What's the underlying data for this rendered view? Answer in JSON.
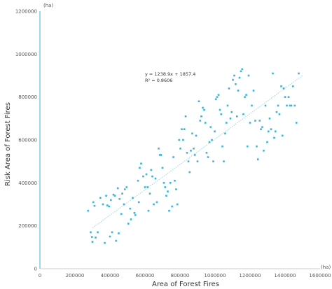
{
  "chart_data": {
    "type": "scatter",
    "title": "",
    "xlabel": "Area of Forest Fires",
    "ylabel": "Risk Area of Forest Fires",
    "x_unit": "(ha)",
    "y_unit": "(ha)",
    "xlim": [
      0,
      1600000
    ],
    "ylim": [
      0,
      1200000
    ],
    "x_ticks": [
      0,
      200000,
      400000,
      600000,
      800000,
      1000000,
      1200000,
      1400000,
      1600000
    ],
    "y_ticks": [
      0,
      200000,
      400000,
      600000,
      800000,
      1000000,
      1200000
    ],
    "x_tick_labels": [
      "0",
      "200000",
      "400000",
      "600000",
      "800000",
      "1000000",
      "1200000",
      "1400000",
      "1600000"
    ],
    "y_tick_labels": [
      "0",
      "200000",
      "400000",
      "600000",
      "800000",
      "1000000",
      "1200000"
    ],
    "grid": false,
    "trendline": {
      "equation": "y = 1238.9x + 1857.4",
      "r_squared": "R² = 0.8606",
      "x_range": [
        300000,
        1500000
      ],
      "y_range": [
        190000,
        900000
      ]
    },
    "colors": {
      "point": "#3ab4d8",
      "trendline": "#9ad6e8",
      "y_axis": "#6fcbe8",
      "x_axis": "#cccccc"
    },
    "points": [
      [
        275000,
        270000
      ],
      [
        290000,
        170000
      ],
      [
        297000,
        148000
      ],
      [
        300000,
        125000
      ],
      [
        305000,
        310000
      ],
      [
        312000,
        293000
      ],
      [
        318000,
        145000
      ],
      [
        330000,
        170000
      ],
      [
        345000,
        330000
      ],
      [
        360000,
        300000
      ],
      [
        370000,
        120000
      ],
      [
        378000,
        340000
      ],
      [
        385000,
        295000
      ],
      [
        395000,
        290000
      ],
      [
        400000,
        150000
      ],
      [
        405000,
        320000
      ],
      [
        412000,
        170000
      ],
      [
        420000,
        345000
      ],
      [
        428000,
        340000
      ],
      [
        435000,
        130000
      ],
      [
        445000,
        375000
      ],
      [
        450000,
        165000
      ],
      [
        455000,
        325000
      ],
      [
        465000,
        255000
      ],
      [
        470000,
        350000
      ],
      [
        480000,
        300000
      ],
      [
        485000,
        370000
      ],
      [
        495000,
        380000
      ],
      [
        505000,
        210000
      ],
      [
        515000,
        280000
      ],
      [
        520000,
        230000
      ],
      [
        530000,
        330000
      ],
      [
        540000,
        260000
      ],
      [
        545000,
        250000
      ],
      [
        560000,
        410000
      ],
      [
        565000,
        310000
      ],
      [
        570000,
        470000
      ],
      [
        578000,
        490000
      ],
      [
        590000,
        430000
      ],
      [
        600000,
        380000
      ],
      [
        608000,
        440000
      ],
      [
        615000,
        380000
      ],
      [
        620000,
        270000
      ],
      [
        628000,
        350000
      ],
      [
        635000,
        460000
      ],
      [
        642000,
        430000
      ],
      [
        650000,
        300000
      ],
      [
        660000,
        420000
      ],
      [
        668000,
        310000
      ],
      [
        678000,
        560000
      ],
      [
        685000,
        530000
      ],
      [
        692000,
        530000
      ],
      [
        700000,
        470000
      ],
      [
        708000,
        400000
      ],
      [
        715000,
        380000
      ],
      [
        722000,
        340000
      ],
      [
        730000,
        360000
      ],
      [
        738000,
        270000
      ],
      [
        745000,
        400000
      ],
      [
        755000,
        290000
      ],
      [
        762000,
        520000
      ],
      [
        770000,
        410000
      ],
      [
        778000,
        370000
      ],
      [
        785000,
        300000
      ],
      [
        795000,
        600000
      ],
      [
        802000,
        560000
      ],
      [
        810000,
        650000
      ],
      [
        818000,
        600000
      ],
      [
        825000,
        650000
      ],
      [
        832000,
        710000
      ],
      [
        840000,
        540000
      ],
      [
        848000,
        500000
      ],
      [
        855000,
        450000
      ],
      [
        862000,
        550000
      ],
      [
        870000,
        630000
      ],
      [
        878000,
        560000
      ],
      [
        885000,
        530000
      ],
      [
        892000,
        620000
      ],
      [
        900000,
        500000
      ],
      [
        908000,
        780000
      ],
      [
        915000,
        690000
      ],
      [
        922000,
        710000
      ],
      [
        930000,
        750000
      ],
      [
        938000,
        740000
      ],
      [
        945000,
        680000
      ],
      [
        952000,
        540000
      ],
      [
        960000,
        520000
      ],
      [
        968000,
        590000
      ],
      [
        975000,
        660000
      ],
      [
        982000,
        600000
      ],
      [
        990000,
        500000
      ],
      [
        998000,
        640000
      ],
      [
        1005000,
        790000
      ],
      [
        1012000,
        800000
      ],
      [
        1020000,
        810000
      ],
      [
        1028000,
        740000
      ],
      [
        1035000,
        720000
      ],
      [
        1042000,
        570000
      ],
      [
        1050000,
        500000
      ],
      [
        1058000,
        630000
      ],
      [
        1065000,
        680000
      ],
      [
        1072000,
        760000
      ],
      [
        1080000,
        840000
      ],
      [
        1088000,
        700000
      ],
      [
        1095000,
        730000
      ],
      [
        1102000,
        880000
      ],
      [
        1110000,
        900000
      ],
      [
        1118000,
        860000
      ],
      [
        1125000,
        710000
      ],
      [
        1132000,
        830000
      ],
      [
        1140000,
        890000
      ],
      [
        1148000,
        920000
      ],
      [
        1155000,
        930000
      ],
      [
        1162000,
        720000
      ],
      [
        1170000,
        800000
      ],
      [
        1178000,
        810000
      ],
      [
        1185000,
        570000
      ],
      [
        1192000,
        900000
      ],
      [
        1200000,
        680000
      ],
      [
        1210000,
        760000
      ],
      [
        1220000,
        830000
      ],
      [
        1230000,
        690000
      ],
      [
        1238000,
        570000
      ],
      [
        1245000,
        510000
      ],
      [
        1255000,
        690000
      ],
      [
        1262000,
        650000
      ],
      [
        1270000,
        660000
      ],
      [
        1278000,
        550000
      ],
      [
        1288000,
        760000
      ],
      [
        1298000,
        590000
      ],
      [
        1305000,
        640000
      ],
      [
        1312000,
        700000
      ],
      [
        1320000,
        650000
      ],
      [
        1330000,
        910000
      ],
      [
        1338000,
        610000
      ],
      [
        1345000,
        640000
      ],
      [
        1352000,
        730000
      ],
      [
        1360000,
        760000
      ],
      [
        1368000,
        720000
      ],
      [
        1378000,
        850000
      ],
      [
        1385000,
        620000
      ],
      [
        1392000,
        840000
      ],
      [
        1400000,
        800000
      ],
      [
        1410000,
        760000
      ],
      [
        1420000,
        800000
      ],
      [
        1428000,
        760000
      ],
      [
        1436000,
        760000
      ],
      [
        1445000,
        850000
      ],
      [
        1455000,
        760000
      ],
      [
        1465000,
        680000
      ],
      [
        1478000,
        910000
      ]
    ]
  }
}
